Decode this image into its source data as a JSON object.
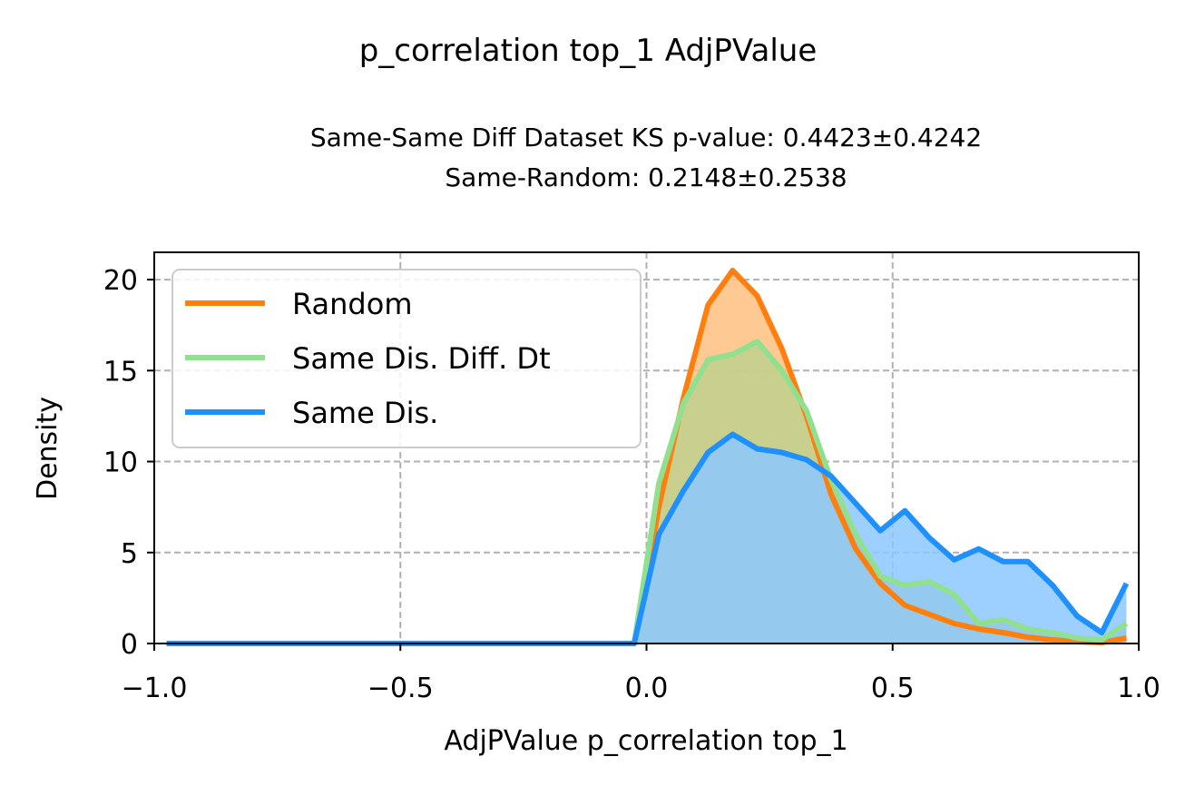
{
  "chart_data": {
    "type": "area",
    "suptitle": "p_correlation top_1 AdjPValue",
    "title_line1": "Same-Same Diff Dataset  KS p-value: 0.4423±0.4242",
    "title_line2": "Same-Random: 0.2148±0.2538",
    "xlabel": "AdjPValue p_correlation top_1",
    "ylabel": "Density",
    "xlim": [
      -1.0,
      1.0
    ],
    "ylim": [
      0,
      21.5
    ],
    "xticks": [
      -1.0,
      -0.5,
      0.0,
      0.5,
      1.0
    ],
    "xtick_labels": [
      "−1.0",
      "−0.5",
      "0.0",
      "0.5",
      "1.0"
    ],
    "yticks": [
      0,
      5,
      10,
      15,
      20
    ],
    "ytick_labels": [
      "0",
      "5",
      "10",
      "15",
      "20"
    ],
    "grid": true,
    "legend_position": "upper-left",
    "series": [
      {
        "name": "Random",
        "color": "#ff7f0e",
        "fill": "#ffbf80",
        "x": [
          -0.975,
          -0.925,
          -0.875,
          -0.825,
          -0.775,
          -0.725,
          -0.675,
          -0.625,
          -0.575,
          -0.525,
          -0.475,
          -0.425,
          -0.375,
          -0.325,
          -0.275,
          -0.225,
          -0.175,
          -0.125,
          -0.075,
          -0.025,
          0.025,
          0.075,
          0.125,
          0.175,
          0.225,
          0.275,
          0.325,
          0.375,
          0.425,
          0.475,
          0.525,
          0.575,
          0.625,
          0.675,
          0.725,
          0.775,
          0.825,
          0.875,
          0.925,
          0.975
        ],
        "values": [
          0,
          0,
          0,
          0,
          0,
          0,
          0,
          0,
          0,
          0,
          0,
          0,
          0,
          0,
          0,
          0,
          0,
          0,
          0,
          0,
          7.5,
          13.5,
          18.6,
          20.5,
          19.1,
          16.2,
          12.5,
          8.2,
          5.2,
          3.3,
          2.1,
          1.6,
          1.1,
          0.8,
          0.6,
          0.35,
          0.2,
          0.1,
          0.05,
          0.3
        ]
      },
      {
        "name": "Same Dis. Diff. Dt",
        "color": "#90e090",
        "fill": "#c0d08c",
        "x": [
          -0.975,
          -0.925,
          -0.875,
          -0.825,
          -0.775,
          -0.725,
          -0.675,
          -0.625,
          -0.575,
          -0.525,
          -0.475,
          -0.425,
          -0.375,
          -0.325,
          -0.275,
          -0.225,
          -0.175,
          -0.125,
          -0.075,
          -0.025,
          0.025,
          0.075,
          0.125,
          0.175,
          0.225,
          0.275,
          0.325,
          0.375,
          0.425,
          0.475,
          0.525,
          0.575,
          0.625,
          0.675,
          0.725,
          0.775,
          0.825,
          0.875,
          0.925,
          0.975
        ],
        "values": [
          0,
          0,
          0,
          0,
          0,
          0,
          0,
          0,
          0,
          0,
          0,
          0,
          0,
          0,
          0,
          0,
          0,
          0,
          0,
          0,
          8.8,
          13.2,
          15.6,
          15.9,
          16.6,
          15.0,
          12.8,
          9.0,
          6.0,
          3.7,
          3.2,
          3.4,
          2.7,
          1.1,
          1.3,
          0.8,
          0.6,
          0.3,
          0.2,
          1.1
        ]
      },
      {
        "name": "Same Dis.",
        "color": "#1e90ff",
        "fill": "#8cc8ff",
        "x": [
          -0.975,
          -0.925,
          -0.875,
          -0.825,
          -0.775,
          -0.725,
          -0.675,
          -0.625,
          -0.575,
          -0.525,
          -0.475,
          -0.425,
          -0.375,
          -0.325,
          -0.275,
          -0.225,
          -0.175,
          -0.125,
          -0.075,
          -0.025,
          0.025,
          0.075,
          0.125,
          0.175,
          0.225,
          0.275,
          0.325,
          0.375,
          0.425,
          0.475,
          0.525,
          0.575,
          0.625,
          0.675,
          0.725,
          0.775,
          0.825,
          0.875,
          0.925,
          0.975
        ],
        "values": [
          0,
          0,
          0,
          0,
          0,
          0,
          0,
          0,
          0,
          0,
          0,
          0,
          0,
          0,
          0,
          0,
          0,
          0,
          0,
          0,
          6.0,
          8.4,
          10.5,
          11.5,
          10.7,
          10.5,
          10.1,
          9.2,
          7.7,
          6.2,
          7.3,
          5.8,
          4.6,
          5.2,
          4.5,
          4.5,
          3.2,
          1.5,
          0.6,
          3.3
        ]
      }
    ]
  }
}
